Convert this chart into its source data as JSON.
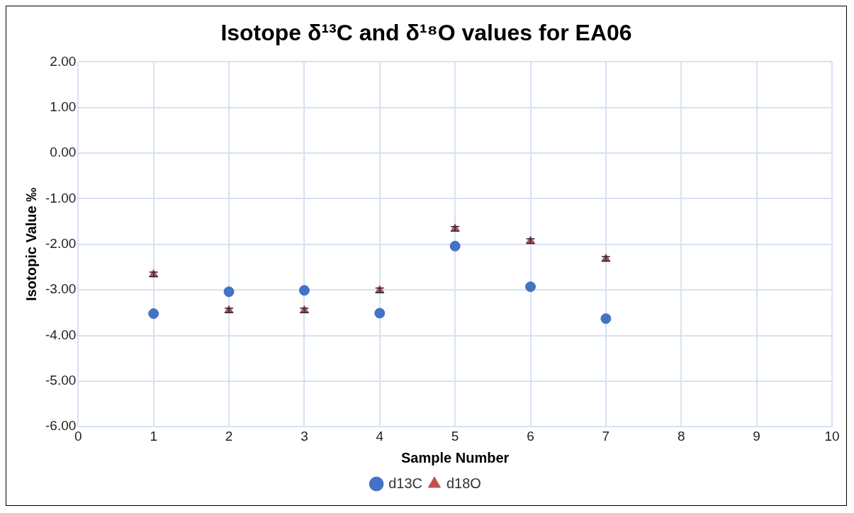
{
  "chart_data": {
    "type": "scatter",
    "title": "Isotope δ¹³C and δ¹⁸O values for EA06",
    "xlabel": "Sample Number",
    "ylabel": "Isotopic Value ‰",
    "series": [
      {
        "name": "d13C",
        "color": "#4472c4",
        "marker": "circle",
        "x": [
          1,
          2,
          3,
          4,
          5,
          6,
          7
        ],
        "values": [
          -3.52,
          -3.04,
          -3.01,
          -3.51,
          -2.04,
          -2.93,
          -3.63
        ]
      },
      {
        "name": "d18O",
        "color": "#c0504d",
        "marker": "triangle",
        "x": [
          1,
          2,
          3,
          4,
          5,
          6,
          7
        ],
        "values": [
          -2.66,
          -3.45,
          -3.45,
          -3.01,
          -1.66,
          -1.93,
          -2.32
        ],
        "errors": [
          0.05,
          0.05,
          0.05,
          0.05,
          0.05,
          0.05,
          0.05
        ]
      }
    ],
    "xlim": [
      0,
      10
    ],
    "xticks": [
      0,
      1,
      2,
      3,
      4,
      5,
      6,
      7,
      8,
      9,
      10
    ],
    "ylim": [
      -6,
      2
    ],
    "yticks": [
      {
        "value": -6,
        "label": "-6.00"
      },
      {
        "value": -5,
        "label": "-5.00"
      },
      {
        "value": -4,
        "label": "-4.00"
      },
      {
        "value": -3,
        "label": "-3.00"
      },
      {
        "value": -2,
        "label": "-2.00"
      },
      {
        "value": -1,
        "label": "-1.00"
      },
      {
        "value": 0,
        "label": "0.00"
      },
      {
        "value": 1,
        "label": "1.00"
      },
      {
        "value": 2,
        "label": "2.00"
      }
    ],
    "grid": true,
    "legend": "bottom"
  }
}
